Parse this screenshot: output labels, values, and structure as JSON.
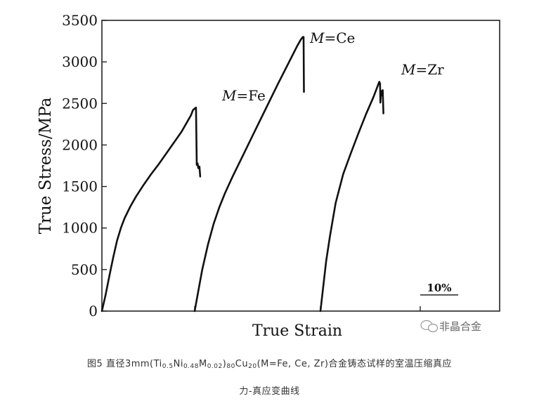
{
  "chart_data": {
    "type": "line",
    "ylabel": "True Stress/MPa",
    "xlabel": "True Strain",
    "ylim": [
      0,
      3500
    ],
    "yticks": [
      "0",
      "500",
      "1000",
      "1500",
      "2000",
      "2500",
      "3000",
      "3500"
    ],
    "scale_bar_label": "10%",
    "x_unit": "relative strain, curves offset horizontally",
    "series": [
      {
        "name": "M=Fe",
        "label_prefix": "M",
        "label_suffix": "=Fe",
        "points": [
          [
            0,
            0
          ],
          [
            0.01,
            200
          ],
          [
            0.02,
            430
          ],
          [
            0.03,
            650
          ],
          [
            0.04,
            850
          ],
          [
            0.05,
            1000
          ],
          [
            0.06,
            1120
          ],
          [
            0.075,
            1260
          ],
          [
            0.09,
            1380
          ],
          [
            0.11,
            1520
          ],
          [
            0.13,
            1650
          ],
          [
            0.15,
            1770
          ],
          [
            0.17,
            1900
          ],
          [
            0.19,
            2030
          ],
          [
            0.21,
            2160
          ],
          [
            0.225,
            2280
          ],
          [
            0.235,
            2360
          ],
          [
            0.24,
            2420
          ],
          [
            0.245,
            2440
          ],
          [
            0.248,
            2450
          ],
          [
            0.25,
            1760
          ],
          [
            0.252,
            1780
          ],
          [
            0.254,
            1720
          ],
          [
            0.257,
            1740
          ],
          [
            0.259,
            1620
          ]
        ]
      },
      {
        "name": "M=Ce",
        "label_prefix": "M",
        "label_suffix": "=Ce",
        "points": [
          [
            0,
            0
          ],
          [
            0.01,
            250
          ],
          [
            0.02,
            500
          ],
          [
            0.035,
            800
          ],
          [
            0.05,
            1050
          ],
          [
            0.065,
            1250
          ],
          [
            0.08,
            1420
          ],
          [
            0.1,
            1620
          ],
          [
            0.13,
            1900
          ],
          [
            0.16,
            2180
          ],
          [
            0.19,
            2460
          ],
          [
            0.22,
            2740
          ],
          [
            0.25,
            3010
          ],
          [
            0.27,
            3190
          ],
          [
            0.28,
            3270
          ],
          [
            0.285,
            3300
          ],
          [
            0.287,
            3300
          ],
          [
            0.288,
            2640
          ]
        ]
      },
      {
        "name": "M=Zr",
        "label_prefix": "M",
        "label_suffix": "=Zr",
        "points": [
          [
            0,
            0
          ],
          [
            0.005,
            200
          ],
          [
            0.015,
            600
          ],
          [
            0.025,
            900
          ],
          [
            0.04,
            1300
          ],
          [
            0.06,
            1650
          ],
          [
            0.08,
            1900
          ],
          [
            0.1,
            2140
          ],
          [
            0.12,
            2370
          ],
          [
            0.14,
            2580
          ],
          [
            0.15,
            2700
          ],
          [
            0.155,
            2760
          ],
          [
            0.157,
            2740
          ],
          [
            0.158,
            2510
          ],
          [
            0.16,
            2650
          ],
          [
            0.162,
            2600
          ],
          [
            0.164,
            2660
          ],
          [
            0.166,
            2380
          ]
        ]
      }
    ]
  },
  "caption": {
    "line1": {
      "prefix": "图5 直径3mm(Ti",
      "sub1": "0.5",
      "ni": "Ni",
      "sub2": "0.48",
      "m": "M",
      "sub3": "0.02",
      "close": ")",
      "sub4": "80",
      "cu": "Cu",
      "sub5": "20",
      "suffix": "(M=Fe, Ce, Zr)合金铸态试样的室温压缩真应"
    },
    "line2": "力-真应变曲线"
  },
  "watermark": {
    "text": "非晶合金",
    "icon": "wechat-icon"
  }
}
